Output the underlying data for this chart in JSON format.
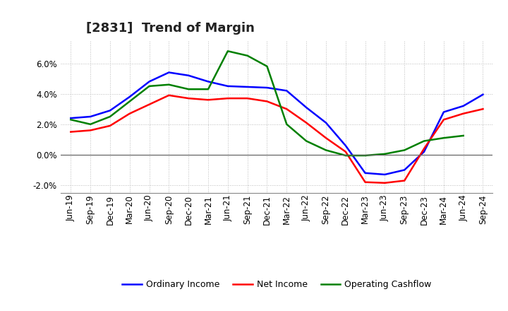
{
  "title": "[2831]  Trend of Margin",
  "x_labels": [
    "Jun-19",
    "Sep-19",
    "Dec-19",
    "Mar-20",
    "Jun-20",
    "Sep-20",
    "Dec-20",
    "Mar-21",
    "Jun-21",
    "Sep-21",
    "Dec-21",
    "Mar-22",
    "Jun-22",
    "Sep-22",
    "Dec-22",
    "Mar-23",
    "Jun-23",
    "Sep-23",
    "Dec-23",
    "Mar-24",
    "Jun-24",
    "Sep-24"
  ],
  "ordinary_income": [
    2.4,
    2.5,
    2.9,
    3.8,
    4.8,
    5.4,
    5.2,
    4.8,
    4.5,
    4.45,
    4.4,
    4.2,
    3.1,
    2.1,
    0.6,
    -1.2,
    -1.3,
    -1.0,
    0.2,
    2.8,
    3.2,
    3.95
  ],
  "net_income": [
    1.5,
    1.6,
    1.9,
    2.7,
    3.3,
    3.9,
    3.7,
    3.6,
    3.7,
    3.7,
    3.5,
    3.0,
    2.1,
    1.1,
    0.2,
    -1.8,
    -1.85,
    -1.7,
    0.4,
    2.3,
    2.7,
    3.0
  ],
  "operating_cashflow": [
    2.3,
    2.0,
    2.5,
    3.5,
    4.5,
    4.6,
    4.3,
    4.3,
    6.8,
    6.5,
    5.8,
    2.0,
    0.9,
    0.3,
    -0.05,
    -0.05,
    0.05,
    0.3,
    0.9,
    1.1,
    1.25,
    null
  ],
  "ylim": [
    -2.5,
    7.5
  ],
  "yticks": [
    -2.0,
    0.0,
    2.0,
    4.0,
    6.0
  ],
  "colors": {
    "ordinary_income": "#0000ff",
    "net_income": "#ff0000",
    "operating_cashflow": "#008000"
  },
  "background_color": "#ffffff",
  "grid_color": "#bbbbbb",
  "legend": {
    "ordinary_income": "Ordinary Income",
    "net_income": "Net Income",
    "operating_cashflow": "Operating Cashflow"
  },
  "title_fontsize": 13,
  "tick_fontsize": 8.5,
  "legend_fontsize": 9
}
